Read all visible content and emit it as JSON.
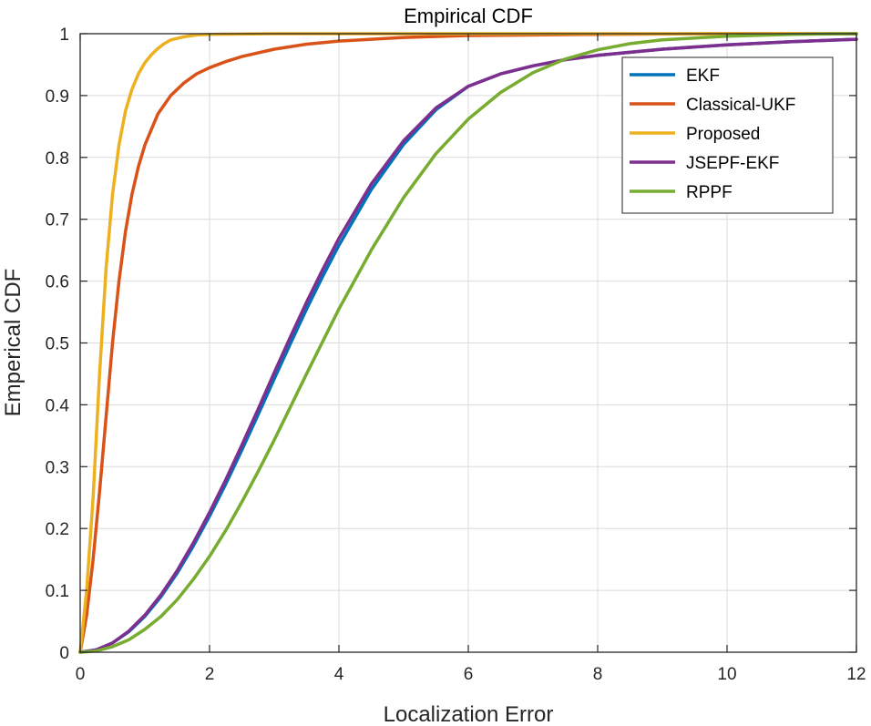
{
  "chart_data": {
    "type": "line",
    "title": "Empirical CDF",
    "xlabel": "Localization Error",
    "ylabel": "Emperical CDF",
    "xlim": [
      0,
      12
    ],
    "ylim": [
      0,
      1
    ],
    "xticks": [
      "0",
      "2",
      "4",
      "6",
      "8",
      "10",
      "12"
    ],
    "yticks": [
      "0",
      "0.1",
      "0.2",
      "0.3",
      "0.4",
      "0.5",
      "0.6",
      "0.7",
      "0.8",
      "0.9",
      "1"
    ],
    "grid": true,
    "legend_position": "top-right",
    "series": [
      {
        "name": "EKF",
        "color": "#0072BD",
        "points": [
          [
            0,
            0
          ],
          [
            0.25,
            0.004
          ],
          [
            0.5,
            0.015
          ],
          [
            0.75,
            0.033
          ],
          [
            1,
            0.058
          ],
          [
            1.25,
            0.09
          ],
          [
            1.5,
            0.128
          ],
          [
            1.75,
            0.172
          ],
          [
            2,
            0.22
          ],
          [
            2.25,
            0.272
          ],
          [
            2.5,
            0.327
          ],
          [
            2.75,
            0.384
          ],
          [
            3,
            0.442
          ],
          [
            3.25,
            0.499
          ],
          [
            3.5,
            0.555
          ],
          [
            3.75,
            0.608
          ],
          [
            4,
            0.658
          ],
          [
            4.5,
            0.748
          ],
          [
            5,
            0.821
          ],
          [
            5.5,
            0.877
          ],
          [
            6,
            0.915
          ],
          [
            6.5,
            0.935
          ],
          [
            7,
            0.948
          ],
          [
            7.5,
            0.958
          ],
          [
            8,
            0.965
          ],
          [
            9,
            0.975
          ],
          [
            10,
            0.982
          ],
          [
            11,
            0.987
          ],
          [
            12,
            0.991
          ]
        ]
      },
      {
        "name": "Classical-UKF",
        "color": "#D95319",
        "points": [
          [
            0,
            0
          ],
          [
            0.1,
            0.06
          ],
          [
            0.2,
            0.15
          ],
          [
            0.3,
            0.26
          ],
          [
            0.4,
            0.38
          ],
          [
            0.5,
            0.5
          ],
          [
            0.6,
            0.6
          ],
          [
            0.7,
            0.68
          ],
          [
            0.8,
            0.74
          ],
          [
            0.9,
            0.785
          ],
          [
            1,
            0.82
          ],
          [
            1.2,
            0.87
          ],
          [
            1.4,
            0.9
          ],
          [
            1.6,
            0.92
          ],
          [
            1.8,
            0.935
          ],
          [
            2,
            0.945
          ],
          [
            2.25,
            0.955
          ],
          [
            2.5,
            0.963
          ],
          [
            3,
            0.975
          ],
          [
            3.5,
            0.983
          ],
          [
            4,
            0.988
          ],
          [
            5,
            0.994
          ],
          [
            6,
            0.997
          ],
          [
            7,
            0.998
          ],
          [
            8,
            0.999
          ],
          [
            10,
            1
          ],
          [
            12,
            1
          ]
        ]
      },
      {
        "name": "Proposed",
        "color": "#EDB120",
        "points": [
          [
            0,
            0
          ],
          [
            0.1,
            0.1
          ],
          [
            0.2,
            0.25
          ],
          [
            0.3,
            0.45
          ],
          [
            0.4,
            0.62
          ],
          [
            0.5,
            0.74
          ],
          [
            0.6,
            0.82
          ],
          [
            0.7,
            0.875
          ],
          [
            0.8,
            0.91
          ],
          [
            0.9,
            0.935
          ],
          [
            1,
            0.953
          ],
          [
            1.1,
            0.966
          ],
          [
            1.2,
            0.976
          ],
          [
            1.3,
            0.984
          ],
          [
            1.4,
            0.99
          ],
          [
            1.6,
            0.995
          ],
          [
            1.8,
            0.998
          ],
          [
            2,
            0.999
          ],
          [
            3,
            1
          ],
          [
            12,
            1
          ]
        ]
      },
      {
        "name": "JSEPF-EKF",
        "color": "#7E2F8E",
        "points": [
          [
            0,
            0
          ],
          [
            0.25,
            0.004
          ],
          [
            0.5,
            0.015
          ],
          [
            0.75,
            0.034
          ],
          [
            1,
            0.06
          ],
          [
            1.25,
            0.093
          ],
          [
            1.5,
            0.132
          ],
          [
            1.75,
            0.177
          ],
          [
            2,
            0.226
          ],
          [
            2.25,
            0.279
          ],
          [
            2.5,
            0.335
          ],
          [
            2.75,
            0.393
          ],
          [
            3,
            0.452
          ],
          [
            3.25,
            0.51
          ],
          [
            3.5,
            0.566
          ],
          [
            3.75,
            0.619
          ],
          [
            4,
            0.669
          ],
          [
            4.5,
            0.757
          ],
          [
            5,
            0.827
          ],
          [
            5.5,
            0.88
          ],
          [
            6,
            0.915
          ],
          [
            6.5,
            0.935
          ],
          [
            7,
            0.948
          ],
          [
            7.5,
            0.958
          ],
          [
            8,
            0.965
          ],
          [
            9,
            0.975
          ],
          [
            10,
            0.982
          ],
          [
            11,
            0.987
          ],
          [
            12,
            0.991
          ]
        ]
      },
      {
        "name": "RPPF",
        "color": "#77AC30",
        "points": [
          [
            0,
            0
          ],
          [
            0.25,
            0.002
          ],
          [
            0.5,
            0.009
          ],
          [
            0.75,
            0.02
          ],
          [
            1,
            0.037
          ],
          [
            1.25,
            0.058
          ],
          [
            1.5,
            0.085
          ],
          [
            1.75,
            0.118
          ],
          [
            2,
            0.155
          ],
          [
            2.25,
            0.197
          ],
          [
            2.5,
            0.243
          ],
          [
            2.75,
            0.292
          ],
          [
            3,
            0.343
          ],
          [
            3.5,
            0.45
          ],
          [
            4,
            0.555
          ],
          [
            4.5,
            0.65
          ],
          [
            5,
            0.735
          ],
          [
            5.5,
            0.806
          ],
          [
            6,
            0.862
          ],
          [
            6.5,
            0.905
          ],
          [
            7,
            0.937
          ],
          [
            7.5,
            0.959
          ],
          [
            8,
            0.974
          ],
          [
            8.5,
            0.984
          ],
          [
            9,
            0.99
          ],
          [
            10,
            0.996
          ],
          [
            11,
            0.999
          ],
          [
            12,
            1
          ]
        ]
      }
    ]
  }
}
